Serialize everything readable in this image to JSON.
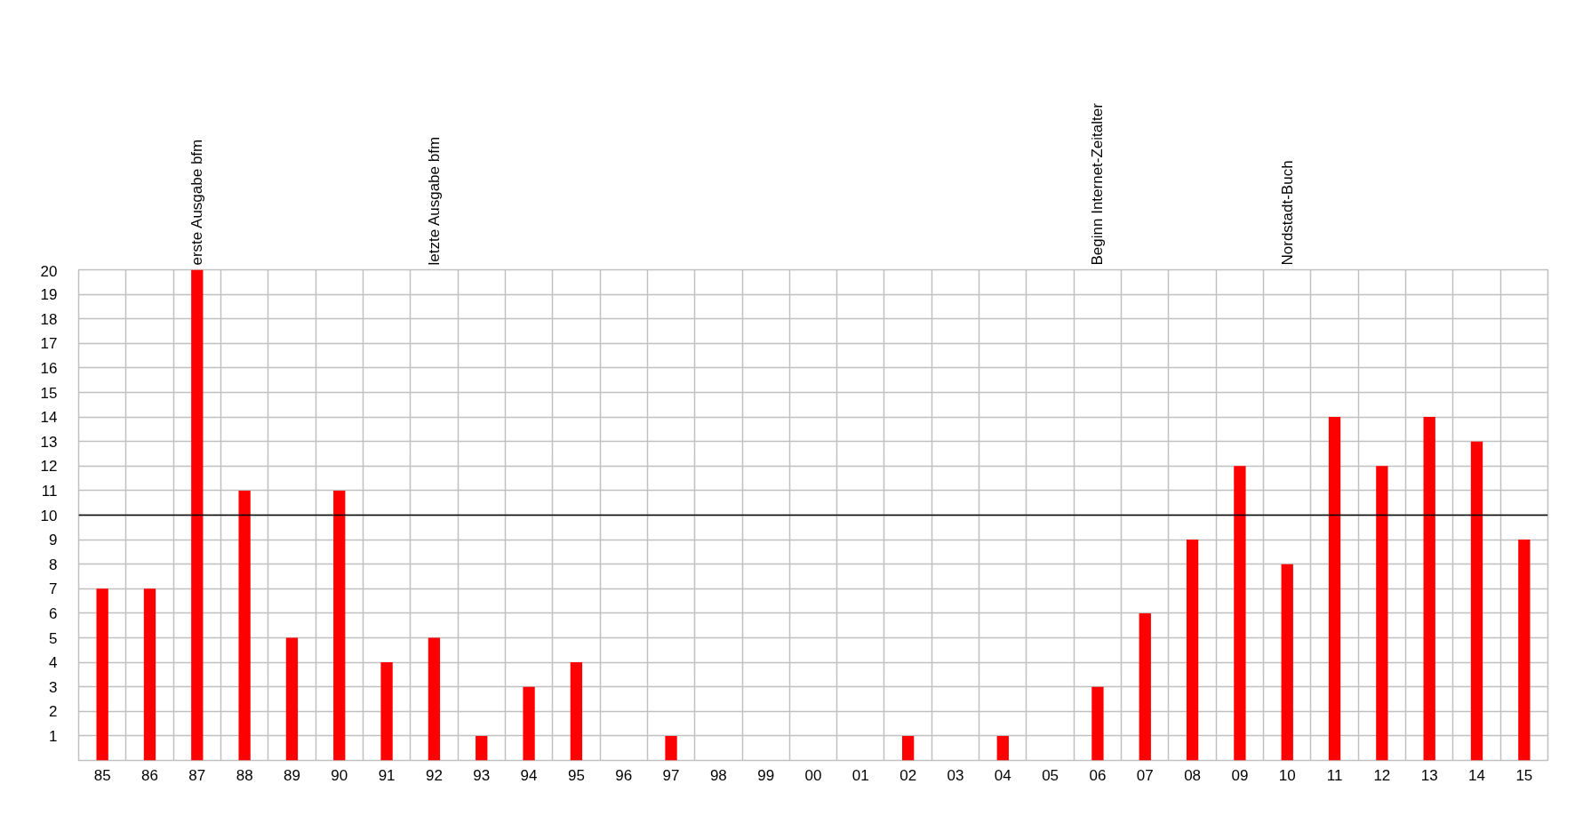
{
  "chart_data": {
    "type": "bar",
    "categories": [
      "85",
      "86",
      "87",
      "88",
      "89",
      "90",
      "91",
      "92",
      "93",
      "94",
      "95",
      "96",
      "97",
      "98",
      "99",
      "00",
      "01",
      "02",
      "03",
      "04",
      "05",
      "06",
      "07",
      "08",
      "09",
      "10",
      "11",
      "12",
      "13",
      "14",
      "15"
    ],
    "values": [
      7,
      7,
      20,
      11,
      5,
      11,
      4,
      5,
      1,
      3,
      4,
      0,
      1,
      0,
      0,
      0,
      0,
      1,
      0,
      1,
      0,
      3,
      6,
      9,
      12,
      8,
      14,
      12,
      14,
      13,
      9
    ],
    "color": "#ff0000",
    "ylim": [
      0,
      20
    ],
    "yticks": [
      1,
      2,
      3,
      4,
      5,
      6,
      7,
      8,
      9,
      10,
      11,
      12,
      13,
      14,
      15,
      16,
      17,
      18,
      19,
      20
    ],
    "grid": true,
    "ref_lines": [
      {
        "axis": "y",
        "value": 10,
        "color": "#000000"
      }
    ],
    "annotations": [
      "erste Ausgabe bfm",
      "letzte Ausgabe bfm",
      "Beginn Internet-Zeitalter",
      "Nordstadt-Buch"
    ]
  }
}
